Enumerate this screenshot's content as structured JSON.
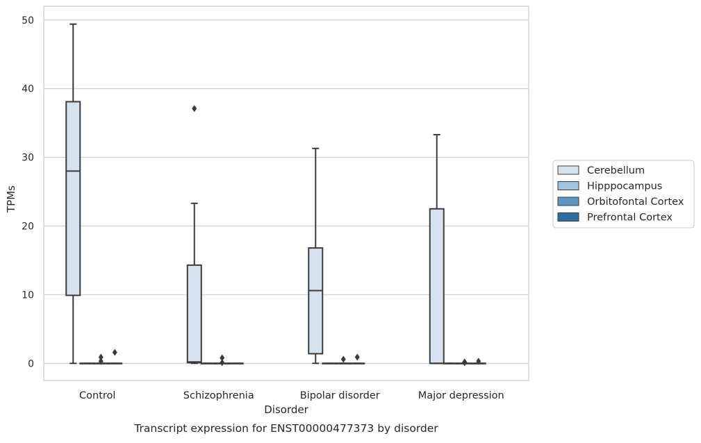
{
  "chart_data": {
    "type": "box",
    "title": "Transcript expression for ENST00000477373 by disorder",
    "xlabel": "Disorder",
    "ylabel": "TPMs",
    "categories": [
      "Control",
      "Schizophrenia",
      "Bipolar disorder",
      "Major depression"
    ],
    "ylim": [
      -2.5,
      52
    ],
    "yticks": [
      0,
      10,
      20,
      30,
      40,
      50
    ],
    "grid": true,
    "legend": {
      "position": "right"
    },
    "series": [
      {
        "name": "Cerebellum",
        "color": "#d5e3f1",
        "boxes": [
          {
            "min": 0,
            "q1": 9.9,
            "median": 28.0,
            "q3": 38.1,
            "max": 49.4,
            "outliers": []
          },
          {
            "min": 0,
            "q1": 0.1,
            "median": 0.2,
            "q3": 14.3,
            "max": 23.3,
            "outliers": [
              37.1
            ]
          },
          {
            "min": 0,
            "q1": 1.4,
            "median": 10.6,
            "q3": 16.8,
            "max": 31.3,
            "outliers": []
          },
          {
            "min": 0,
            "q1": 0,
            "median": 0,
            "q3": 22.5,
            "max": 33.3,
            "outliers": []
          }
        ]
      },
      {
        "name": "Hipppocampus",
        "color": "#a0c4de",
        "boxes": [
          {
            "min": 0,
            "q1": 0,
            "median": 0,
            "q3": 0,
            "max": 0,
            "outliers": []
          },
          {
            "min": 0,
            "q1": 0,
            "median": 0,
            "q3": 0,
            "max": 0,
            "outliers": []
          },
          {
            "min": 0,
            "q1": 0,
            "median": 0,
            "q3": 0,
            "max": 0,
            "outliers": []
          },
          {
            "min": 0,
            "q1": 0,
            "median": 0,
            "q3": 0,
            "max": 0,
            "outliers": []
          }
        ]
      },
      {
        "name": "Orbitofontal Cortex",
        "color": "#5c97c5",
        "boxes": [
          {
            "min": 0,
            "q1": 0,
            "median": 0,
            "q3": 0,
            "max": 0,
            "outliers": [
              0.3,
              0.9
            ]
          },
          {
            "min": 0,
            "q1": 0,
            "median": 0,
            "q3": 0,
            "max": 0,
            "outliers": [
              0.1,
              0.8
            ]
          },
          {
            "min": 0,
            "q1": 0,
            "median": 0,
            "q3": 0,
            "max": 0,
            "outliers": [
              0.6
            ]
          },
          {
            "min": 0,
            "q1": 0,
            "median": 0,
            "q3": 0,
            "max": 0,
            "outliers": [
              0.1,
              0.2
            ]
          }
        ]
      },
      {
        "name": "Prefrontal Cortex",
        "color": "#2d6ea7",
        "boxes": [
          {
            "min": 0,
            "q1": 0,
            "median": 0,
            "q3": 0,
            "max": 0,
            "outliers": [
              1.6
            ]
          },
          {
            "min": 0,
            "q1": 0,
            "median": 0,
            "q3": 0,
            "max": 0,
            "outliers": []
          },
          {
            "min": 0,
            "q1": 0,
            "median": 0,
            "q3": 0,
            "max": 0,
            "outliers": [
              0.9
            ]
          },
          {
            "min": 0,
            "q1": 0,
            "median": 0,
            "q3": 0,
            "max": 0,
            "outliers": [
              0.3
            ]
          }
        ]
      }
    ]
  }
}
